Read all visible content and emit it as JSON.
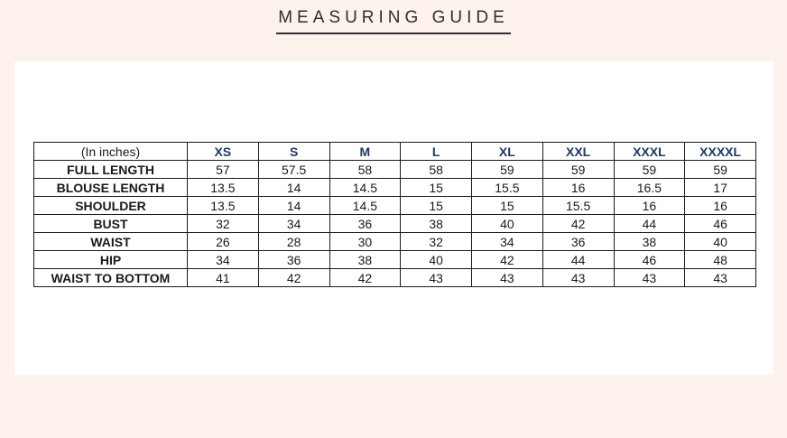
{
  "page": {
    "title": "MEASURING GUIDE",
    "background_color": "#fdf2ec",
    "panel_color": "#ffffff",
    "title_color": "#2e2e33"
  },
  "table": {
    "unit_label": "(In inches)",
    "header_text_color": "#1f3864",
    "border_color": "#1a1a1a",
    "size_headers": [
      "XS",
      "S",
      "M",
      "L",
      "XL",
      "XXL",
      "XXXL",
      "XXXXL"
    ],
    "rows": [
      {
        "label": "FULL LENGTH",
        "values": [
          "57",
          "57.5",
          "58",
          "58",
          "59",
          "59",
          "59",
          "59"
        ]
      },
      {
        "label": "BLOUSE LENGTH",
        "values": [
          "13.5",
          "14",
          "14.5",
          "15",
          "15.5",
          "16",
          "16.5",
          "17"
        ]
      },
      {
        "label": "SHOULDER",
        "values": [
          "13.5",
          "14",
          "14.5",
          "15",
          "15",
          "15.5",
          "16",
          "16"
        ]
      },
      {
        "label": "BUST",
        "values": [
          "32",
          "34",
          "36",
          "38",
          "40",
          "42",
          "44",
          "46"
        ]
      },
      {
        "label": "WAIST",
        "values": [
          "26",
          "28",
          "30",
          "32",
          "34",
          "36",
          "38",
          "40"
        ]
      },
      {
        "label": "HIP",
        "values": [
          "34",
          "36",
          "38",
          "40",
          "42",
          "44",
          "46",
          "48"
        ]
      },
      {
        "label": "WAIST TO BOTTOM",
        "values": [
          "41",
          "42",
          "42",
          "43",
          "43",
          "43",
          "43",
          "43"
        ]
      }
    ]
  }
}
